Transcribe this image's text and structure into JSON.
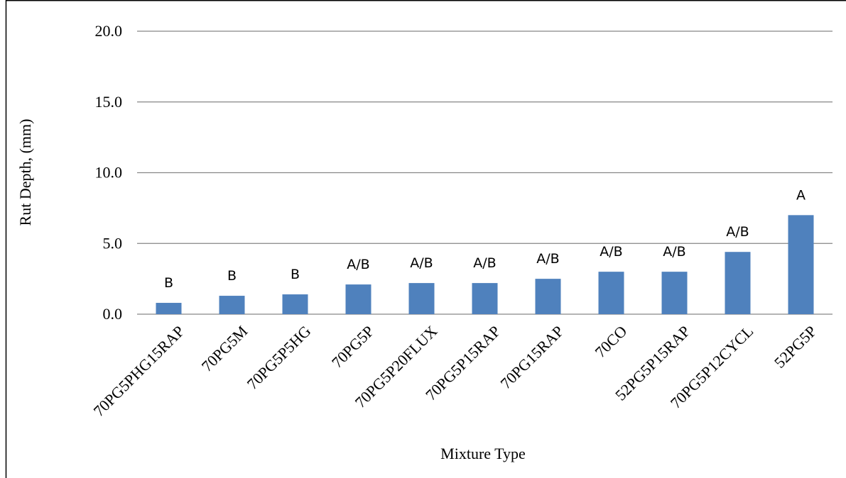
{
  "chart_data": {
    "type": "bar",
    "categories": [
      "70PG5PHG15RAP",
      "70PG5M",
      "70PG5P5HG",
      "70PG5P",
      "70PG5P20FLUX",
      "70PG5P15RAP",
      "70PG15RAP",
      "70CO",
      "52PG5P15RAP",
      "70PG5P12CYCL",
      "52PG5P"
    ],
    "values": [
      0.8,
      1.3,
      1.4,
      2.1,
      2.2,
      2.2,
      2.5,
      3.0,
      3.0,
      4.4,
      7.0
    ],
    "data_labels": [
      "B",
      "B",
      "B",
      "A/B",
      "A/B",
      "A/B",
      "A/B",
      "A/B",
      "A/B",
      "A/B",
      "A"
    ],
    "title": "",
    "xlabel": "Mixture Type",
    "ylabel": "Rut Depth, (mm)",
    "ylim": [
      0,
      20
    ],
    "yticks": [
      "0.0",
      "5.0",
      "10.0",
      "15.0",
      "20.0"
    ],
    "grid": "horizontal",
    "legend": "none",
    "bar_color": "#4f81bd",
    "grid_color": "#868686"
  }
}
